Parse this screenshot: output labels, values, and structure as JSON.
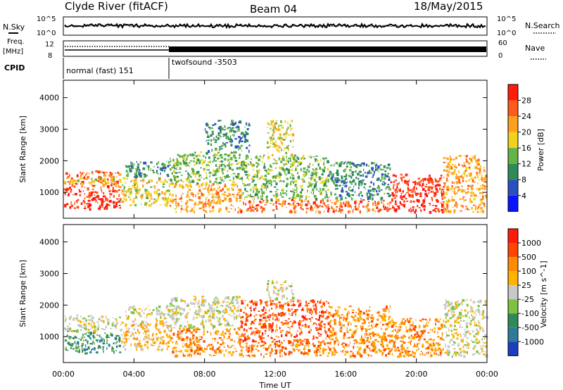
{
  "header": {
    "station": "Clyde River (fitACF)",
    "beam": "Beam 04",
    "date": "18/May/2015"
  },
  "top_panels": {
    "nsky_label": "N.Sky",
    "nsky_ticks": [
      "10^5",
      "10^0"
    ],
    "nsearch_label": "N.Search",
    "nsearch_ticks": [
      "10^5",
      "10^0"
    ],
    "freq_label": "Freq.",
    "freq_unit": "[MHz]",
    "freq_ticks": [
      "12",
      "8"
    ],
    "nave_label": "Nave",
    "nave_ticks": [
      "60",
      "0"
    ],
    "cpid_label": "CPID",
    "cpid_modes": [
      {
        "name": "normal (fast) 151",
        "start": "00:00",
        "end": "06:00"
      },
      {
        "name": "twofsound -3503",
        "start": "06:00",
        "end": "24:00"
      }
    ]
  },
  "chart_data": [
    {
      "type": "heatmap",
      "title": "",
      "xlabel": "",
      "ylabel": "Slant Range [km]",
      "x_ticks": [
        "00:00",
        "04:00",
        "08:00",
        "12:00",
        "16:00",
        "20:00",
        "00:00"
      ],
      "xlim_hours": [
        0,
        24
      ],
      "y_ticks": [
        1000,
        2000,
        3000,
        4000
      ],
      "ylim": [
        180,
        4550
      ],
      "colorbar": {
        "label": "Power [dB]",
        "ticks": [
          "4",
          "8",
          "12",
          "16",
          "20",
          "24",
          "28"
        ],
        "colors": [
          "#0a14ff",
          "#2a4fc0",
          "#2e8b57",
          "#62b446",
          "#f0d21e",
          "#ff9f1c",
          "#ff5a1a",
          "#ff1a0a"
        ]
      },
      "regions": [
        {
          "t0": 0.0,
          "t1": 3.2,
          "r0": 500,
          "r1": 1200,
          "level": 7
        },
        {
          "t0": 0.0,
          "t1": 3.2,
          "r0": 1200,
          "r1": 1700,
          "level": 6
        },
        {
          "t0": 0.0,
          "t1": 3.2,
          "r0": 1300,
          "r1": 1500,
          "level": 4
        },
        {
          "t0": 3.2,
          "t1": 6.0,
          "r0": 600,
          "r1": 1500,
          "level": 4
        },
        {
          "t0": 3.5,
          "t1": 6.5,
          "r0": 1500,
          "r1": 2000,
          "level": 2
        },
        {
          "t0": 6.0,
          "t1": 10.0,
          "r0": 400,
          "r1": 1300,
          "level": 5
        },
        {
          "t0": 6.0,
          "t1": 10.0,
          "r0": 1300,
          "r1": 2300,
          "level": 3
        },
        {
          "t0": 8.0,
          "t1": 10.5,
          "r0": 2300,
          "r1": 3300,
          "level": 2
        },
        {
          "t0": 10.0,
          "t1": 15.0,
          "r0": 400,
          "r1": 800,
          "level": 6
        },
        {
          "t0": 10.0,
          "t1": 15.0,
          "r0": 800,
          "r1": 2200,
          "level": 3
        },
        {
          "t0": 11.5,
          "t1": 13.0,
          "r0": 2200,
          "r1": 3300,
          "level": 4
        },
        {
          "t0": 15.0,
          "t1": 18.5,
          "r0": 400,
          "r1": 800,
          "level": 6
        },
        {
          "t0": 15.0,
          "t1": 18.5,
          "r0": 800,
          "r1": 2000,
          "level": 2
        },
        {
          "t0": 18.5,
          "t1": 21.5,
          "r0": 400,
          "r1": 1600,
          "level": 7
        },
        {
          "t0": 21.5,
          "t1": 24.0,
          "r0": 400,
          "r1": 2200,
          "level": 5
        }
      ]
    },
    {
      "type": "heatmap",
      "title": "",
      "xlabel": "Time UT",
      "ylabel": "Slant Range [km]",
      "x_ticks": [
        "00:00",
        "04:00",
        "08:00",
        "12:00",
        "16:00",
        "20:00",
        "00:00"
      ],
      "xlim_hours": [
        0,
        24
      ],
      "y_ticks": [
        1000,
        2000,
        3000,
        4000
      ],
      "ylim": [
        180,
        4550
      ],
      "colorbar": {
        "label": "Velocity [m s^-1]",
        "ticks": [
          "1000",
          "500",
          "100",
          "25",
          "-25",
          "-100",
          "-500",
          "-1000"
        ],
        "colors": [
          "#1a3fc0",
          "#2d7a9a",
          "#2e8b57",
          "#7fc241",
          "#c8c8c8",
          "#ffb300",
          "#ff8c00",
          "#ff4500",
          "#ff1a0a"
        ]
      },
      "regions": [
        {
          "t0": 0.0,
          "t1": 3.2,
          "r0": 500,
          "r1": 1200,
          "level": 2
        },
        {
          "t0": 0.0,
          "t1": 3.2,
          "r0": 1200,
          "r1": 1700,
          "level": 4
        },
        {
          "t0": 3.2,
          "t1": 6.0,
          "r0": 600,
          "r1": 1500,
          "level": 5
        },
        {
          "t0": 3.5,
          "t1": 6.5,
          "r0": 1500,
          "r1": 2000,
          "level": 4
        },
        {
          "t0": 6.0,
          "t1": 10.0,
          "r0": 400,
          "r1": 1300,
          "level": 6
        },
        {
          "t0": 6.0,
          "t1": 10.0,
          "r0": 1300,
          "r1": 2300,
          "level": 4
        },
        {
          "t0": 10.0,
          "t1": 15.0,
          "r0": 400,
          "r1": 800,
          "level": 6
        },
        {
          "t0": 10.0,
          "t1": 15.0,
          "r0": 800,
          "r1": 2200,
          "level": 7
        },
        {
          "t0": 11.5,
          "t1": 13.0,
          "r0": 2200,
          "r1": 2800,
          "level": 4
        },
        {
          "t0": 15.0,
          "t1": 18.5,
          "r0": 400,
          "r1": 800,
          "level": 6
        },
        {
          "t0": 15.0,
          "t1": 18.5,
          "r0": 800,
          "r1": 2000,
          "level": 6
        },
        {
          "t0": 18.5,
          "t1": 21.5,
          "r0": 400,
          "r1": 1600,
          "level": 6
        },
        {
          "t0": 21.5,
          "t1": 24.0,
          "r0": 400,
          "r1": 2200,
          "level": 4
        }
      ]
    }
  ]
}
